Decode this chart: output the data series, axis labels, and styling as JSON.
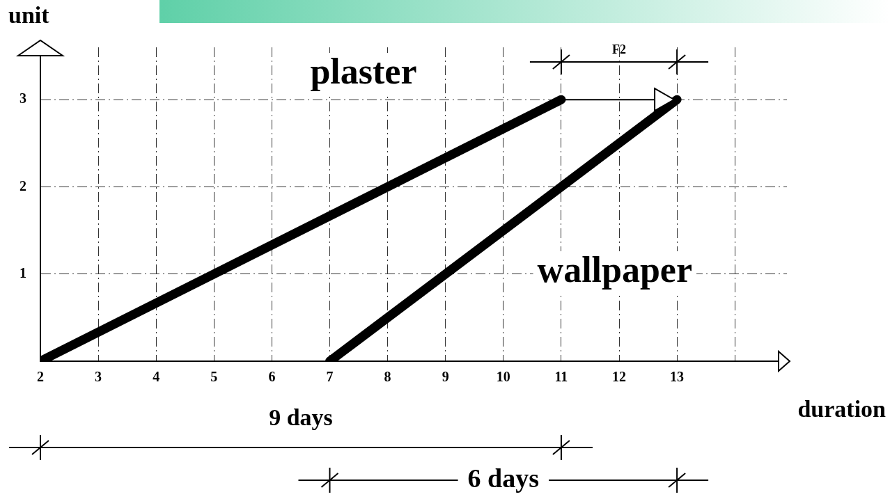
{
  "chart_data": {
    "type": "line",
    "xlabel": "duration",
    "ylabel": "unit",
    "xlim": [
      2,
      14.9
    ],
    "xticks": [
      2,
      3,
      4,
      5,
      6,
      7,
      8,
      9,
      10,
      11,
      12,
      13,
      {
        "value": 14,
        "label": null
      }
    ],
    "ylim": [
      0,
      3.6
    ],
    "yticks": [
      1,
      2,
      3
    ],
    "series": [
      {
        "name": "plaster",
        "color": "#000000",
        "x": [
          2,
          11
        ],
        "values": [
          0,
          3
        ]
      },
      {
        "name": "wallpaper",
        "color": "#000000",
        "x": [
          7,
          13
        ],
        "values": [
          0,
          3
        ]
      }
    ],
    "annotations": [
      "9 days",
      "6 days",
      "F2"
    ],
    "grid": true,
    "legend": false,
    "marker": "none",
    "line_style": "solid"
  }
}
